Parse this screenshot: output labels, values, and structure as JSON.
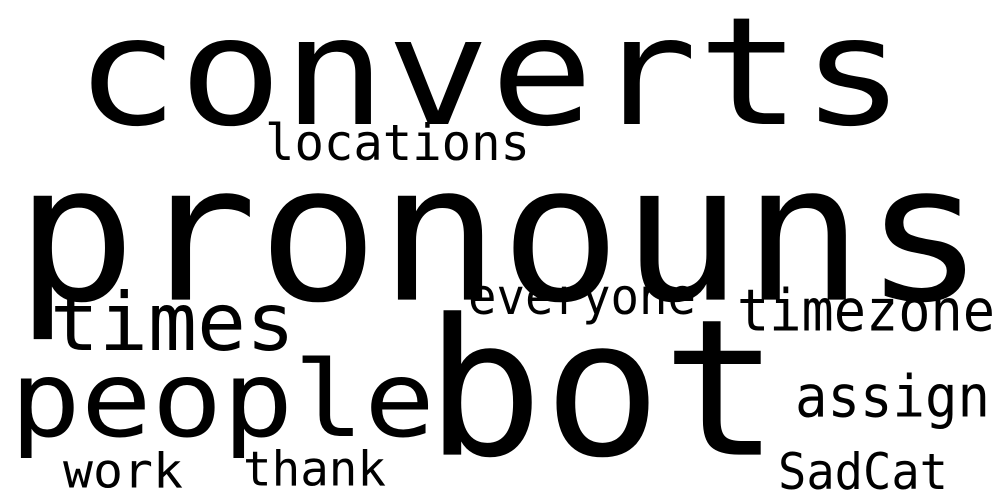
{
  "words": [
    {
      "text": "converts"
    },
    {
      "text": "pronouns"
    },
    {
      "text": "bot"
    },
    {
      "text": "people"
    },
    {
      "text": "times"
    },
    {
      "text": "locations"
    },
    {
      "text": "everyone"
    },
    {
      "text": "timezone"
    },
    {
      "text": "assign"
    },
    {
      "text": "thank"
    },
    {
      "text": "work"
    },
    {
      "text": "SadCat"
    }
  ],
  "colors": {
    "text": "#000000",
    "background": "#ffffff"
  }
}
